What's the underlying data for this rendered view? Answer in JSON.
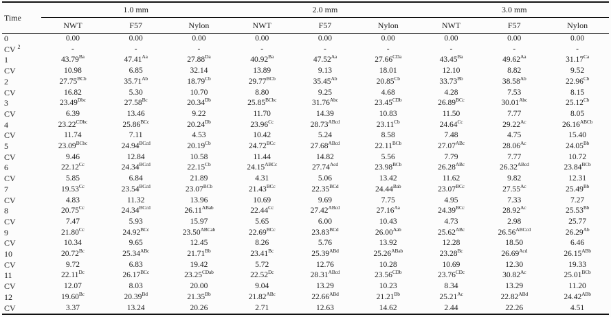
{
  "colors": {
    "text": "#1b1b1b",
    "background": "#fcfcfc",
    "rule": "#111111"
  },
  "table": {
    "time_header": "Time",
    "groups": [
      {
        "label": "1.0 mm",
        "columns": [
          "NWT",
          "F57",
          "Nylon"
        ]
      },
      {
        "label": "2.0 mm",
        "columns": [
          "NWT",
          "F57",
          "Nylon"
        ]
      },
      {
        "label": "3.0 mm",
        "columns": [
          "NWT",
          "F57",
          "Nylon"
        ]
      }
    ],
    "rows": [
      {
        "label": "0",
        "cells": [
          [
            "0.00",
            ""
          ],
          [
            "0.00",
            ""
          ],
          [
            "0.00",
            ""
          ],
          [
            "0.00",
            ""
          ],
          [
            "0.00",
            ""
          ],
          [
            "0.00",
            ""
          ],
          [
            "0.00",
            ""
          ],
          [
            "0.00",
            ""
          ],
          [
            "0.00",
            ""
          ]
        ]
      },
      {
        "label": "CV",
        "label_sup": "2",
        "cells": [
          [
            "-",
            ""
          ],
          [
            "-",
            ""
          ],
          [
            "-",
            ""
          ],
          [
            "-",
            ""
          ],
          [
            "-",
            ""
          ],
          [
            "-",
            ""
          ],
          [
            "-",
            ""
          ],
          [
            "-",
            ""
          ],
          [
            "-",
            ""
          ]
        ]
      },
      {
        "label": "1",
        "cells": [
          [
            "43.79",
            "Ba"
          ],
          [
            "47.41",
            "Aa"
          ],
          [
            "27.88",
            "Da"
          ],
          [
            "40.92",
            "Ba"
          ],
          [
            "47.52",
            "Aa"
          ],
          [
            "27.66",
            "CDa"
          ],
          [
            "43.45",
            "Ba"
          ],
          [
            "49.62",
            "Aa"
          ],
          [
            "31.17",
            "Ca"
          ]
        ]
      },
      {
        "label": "CV",
        "cells": [
          [
            "10.98",
            ""
          ],
          [
            "6.85",
            ""
          ],
          [
            "32.14",
            ""
          ],
          [
            "13.89",
            ""
          ],
          [
            "9.13",
            ""
          ],
          [
            "18.01",
            ""
          ],
          [
            "12.10",
            ""
          ],
          [
            "8.82",
            ""
          ],
          [
            "9.52",
            ""
          ]
        ]
      },
      {
        "label": "2",
        "cells": [
          [
            "27.75",
            "BCb"
          ],
          [
            "35.71",
            "Ab"
          ],
          [
            "18.79",
            "Cb"
          ],
          [
            "29.77",
            "BCb"
          ],
          [
            "35.45",
            "Ab"
          ],
          [
            "20.85",
            "Cb"
          ],
          [
            "33.73",
            "Bb"
          ],
          [
            "38.58",
            "Ab"
          ],
          [
            "22.96",
            "Cb"
          ]
        ]
      },
      {
        "label": "CV",
        "cells": [
          [
            "16.82",
            ""
          ],
          [
            "5.30",
            ""
          ],
          [
            "10.70",
            ""
          ],
          [
            "8.80",
            ""
          ],
          [
            "9.25",
            ""
          ],
          [
            "4.68",
            ""
          ],
          [
            "4.28",
            ""
          ],
          [
            "7.53",
            ""
          ],
          [
            "8.15",
            ""
          ]
        ]
      },
      {
        "label": "3",
        "cells": [
          [
            "23.49",
            "Dbc"
          ],
          [
            "27.58",
            "Bc"
          ],
          [
            "20.34",
            "Db"
          ],
          [
            "25.85",
            "BCbc"
          ],
          [
            "31.76",
            "Abc"
          ],
          [
            "23.45",
            "CDb"
          ],
          [
            "26.89",
            "BCc"
          ],
          [
            "30.01",
            "Abc"
          ],
          [
            "25.12",
            "Cb"
          ]
        ]
      },
      {
        "label": "CV",
        "cells": [
          [
            "6.39",
            ""
          ],
          [
            "13.46",
            ""
          ],
          [
            "9.22",
            ""
          ],
          [
            "11.70",
            ""
          ],
          [
            "14.39",
            ""
          ],
          [
            "10.83",
            ""
          ],
          [
            "11.50",
            ""
          ],
          [
            "7.77",
            ""
          ],
          [
            "8.05",
            ""
          ]
        ]
      },
      {
        "label": "4",
        "cells": [
          [
            "23.22",
            "CDbc"
          ],
          [
            "25.86",
            "BCc"
          ],
          [
            "20.24",
            "Db"
          ],
          [
            "23.96",
            "Cc"
          ],
          [
            "28.73",
            "ABcd"
          ],
          [
            "23.11",
            "Cb"
          ],
          [
            "24.64",
            "Cc"
          ],
          [
            "29.22",
            "Ac"
          ],
          [
            "26.16",
            "ABCb"
          ]
        ]
      },
      {
        "label": "CV",
        "cells": [
          [
            "11.74",
            ""
          ],
          [
            "7.11",
            ""
          ],
          [
            "4.53",
            ""
          ],
          [
            "10.42",
            ""
          ],
          [
            "5.24",
            ""
          ],
          [
            "8.58",
            ""
          ],
          [
            "7.48",
            ""
          ],
          [
            "4.75",
            ""
          ],
          [
            "15.40",
            ""
          ]
        ]
      },
      {
        "label": "5",
        "cells": [
          [
            "23.09",
            "BCbc"
          ],
          [
            "24.94",
            "BCcd"
          ],
          [
            "20.19",
            "Cb"
          ],
          [
            "24.72",
            "BCc"
          ],
          [
            "27.68",
            "ABcd"
          ],
          [
            "22.11",
            "BCb"
          ],
          [
            "27.07",
            "ABc"
          ],
          [
            "28.06",
            "Ac"
          ],
          [
            "24.05",
            "Bb"
          ]
        ]
      },
      {
        "label": "CV",
        "cells": [
          [
            "9.46",
            ""
          ],
          [
            "12.84",
            ""
          ],
          [
            "10.58",
            ""
          ],
          [
            "11.44",
            ""
          ],
          [
            "14.82",
            ""
          ],
          [
            "5.56",
            ""
          ],
          [
            "7.79",
            ""
          ],
          [
            "7.77",
            ""
          ],
          [
            "10.72",
            ""
          ]
        ]
      },
      {
        "label": "6",
        "cells": [
          [
            "22.12",
            "Cc"
          ],
          [
            "24.34",
            "BCcd"
          ],
          [
            "22.15",
            "Cb"
          ],
          [
            "24.15",
            "ABCc"
          ],
          [
            "27.74",
            "Acd"
          ],
          [
            "23.98",
            "BCb"
          ],
          [
            "26.28",
            "ABc"
          ],
          [
            "26.32",
            "ABcd"
          ],
          [
            "23.84",
            "BCb"
          ]
        ]
      },
      {
        "label": "CV",
        "cells": [
          [
            "5.85",
            ""
          ],
          [
            "6.84",
            ""
          ],
          [
            "21.89",
            ""
          ],
          [
            "4.31",
            ""
          ],
          [
            "5.06",
            ""
          ],
          [
            "13.42",
            ""
          ],
          [
            "11.62",
            ""
          ],
          [
            "9.82",
            ""
          ],
          [
            "12.31",
            ""
          ]
        ]
      },
      {
        "label": "7",
        "cells": [
          [
            "19.53",
            "Cc"
          ],
          [
            "23.54",
            "BCcd"
          ],
          [
            "23.07",
            "BCb"
          ],
          [
            "21.43",
            "BCc"
          ],
          [
            "22.35",
            "BCd"
          ],
          [
            "24.44",
            "Bab"
          ],
          [
            "23.07",
            "BCc"
          ],
          [
            "27.55",
            "Ac"
          ],
          [
            "25.49",
            "Bb"
          ]
        ]
      },
      {
        "label": "CV",
        "cells": [
          [
            "4.83",
            ""
          ],
          [
            "11.32",
            ""
          ],
          [
            "13.96",
            ""
          ],
          [
            "10.69",
            ""
          ],
          [
            "9.69",
            ""
          ],
          [
            "7.75",
            ""
          ],
          [
            "4.95",
            ""
          ],
          [
            "7.33",
            ""
          ],
          [
            "7.27",
            ""
          ]
        ]
      },
      {
        "label": "8",
        "cells": [
          [
            "20.75",
            "Cc"
          ],
          [
            "24.34",
            "BCcd"
          ],
          [
            "26.11",
            "ABab"
          ],
          [
            "22.44",
            "Cc"
          ],
          [
            "27.42",
            "ABcd"
          ],
          [
            "27.16",
            "Aa"
          ],
          [
            "24.39",
            "BCc"
          ],
          [
            "28.92",
            "Ac"
          ],
          [
            "25.53",
            "Bb"
          ]
        ]
      },
      {
        "label": "CV",
        "cells": [
          [
            "7.47",
            ""
          ],
          [
            "5.93",
            ""
          ],
          [
            "15.97",
            ""
          ],
          [
            "5.65",
            ""
          ],
          [
            "6.00",
            ""
          ],
          [
            "10.43",
            ""
          ],
          [
            "4.73",
            ""
          ],
          [
            "2.98",
            ""
          ],
          [
            "25.77",
            ""
          ]
        ]
      },
      {
        "label": "9",
        "cells": [
          [
            "21.80",
            "Cc"
          ],
          [
            "24.92",
            "BCc"
          ],
          [
            "23.50",
            "ABCab"
          ],
          [
            "22.69",
            "BCc"
          ],
          [
            "23.83",
            "BCd"
          ],
          [
            "26.00",
            "Aab"
          ],
          [
            "25.62",
            "ABc"
          ],
          [
            "26.56",
            "ABCcd"
          ],
          [
            "26.29",
            "Ab"
          ]
        ]
      },
      {
        "label": "CV",
        "cells": [
          [
            "10.34",
            ""
          ],
          [
            "9.65",
            ""
          ],
          [
            "12.45",
            ""
          ],
          [
            "8.26",
            ""
          ],
          [
            "5.76",
            ""
          ],
          [
            "13.92",
            ""
          ],
          [
            "12.28",
            ""
          ],
          [
            "18.50",
            ""
          ],
          [
            "6.46",
            ""
          ]
        ]
      },
      {
        "label": "10",
        "cells": [
          [
            "20.72",
            "Bc"
          ],
          [
            "25.34",
            "ABc"
          ],
          [
            "21.71",
            "Bb"
          ],
          [
            "23.41",
            "Bc"
          ],
          [
            "25.39",
            "ABd"
          ],
          [
            "25.26",
            "ABab"
          ],
          [
            "23.28",
            "Bc"
          ],
          [
            "26.69",
            "Acd"
          ],
          [
            "26.15",
            "ABb"
          ]
        ]
      },
      {
        "label": "CV",
        "cells": [
          [
            "9.72",
            ""
          ],
          [
            "6.83",
            ""
          ],
          [
            "19.42",
            ""
          ],
          [
            "5.72",
            ""
          ],
          [
            "12.76",
            ""
          ],
          [
            "10.28",
            ""
          ],
          [
            "10.69",
            ""
          ],
          [
            "12.30",
            ""
          ],
          [
            "19.33",
            ""
          ]
        ]
      },
      {
        "label": "11",
        "cells": [
          [
            "22.11",
            "Dc"
          ],
          [
            "26.17",
            "BCc"
          ],
          [
            "23.25",
            "CDab"
          ],
          [
            "22.52",
            "Dc"
          ],
          [
            "28.31",
            "ABcd"
          ],
          [
            "23.56",
            "CDb"
          ],
          [
            "23.76",
            "CDc"
          ],
          [
            "30.82",
            "Ac"
          ],
          [
            "25.01",
            "BCb"
          ]
        ]
      },
      {
        "label": "CV",
        "cells": [
          [
            "12.07",
            ""
          ],
          [
            "8.03",
            ""
          ],
          [
            "20.00",
            ""
          ],
          [
            "9.04",
            ""
          ],
          [
            "13.29",
            ""
          ],
          [
            "10.23",
            ""
          ],
          [
            "8.34",
            ""
          ],
          [
            "13.29",
            ""
          ],
          [
            "11.20",
            ""
          ]
        ]
      },
      {
        "label": "12",
        "cells": [
          [
            "19.60",
            "Bc"
          ],
          [
            "20.39",
            "Bd"
          ],
          [
            "21.35",
            "Bb"
          ],
          [
            "21.82",
            "ABc"
          ],
          [
            "22.66",
            "ABd"
          ],
          [
            "21.21",
            "Bb"
          ],
          [
            "25.21",
            "Ac"
          ],
          [
            "22.82",
            "ABd"
          ],
          [
            "24.42",
            "ABb"
          ]
        ]
      },
      {
        "label": "CV",
        "cells": [
          [
            "3.37",
            ""
          ],
          [
            "13.24",
            ""
          ],
          [
            "20.26",
            ""
          ],
          [
            "2.71",
            ""
          ],
          [
            "12.63",
            ""
          ],
          [
            "14.62",
            ""
          ],
          [
            "2.44",
            ""
          ],
          [
            "22.26",
            ""
          ],
          [
            "4.51",
            ""
          ]
        ]
      }
    ]
  }
}
